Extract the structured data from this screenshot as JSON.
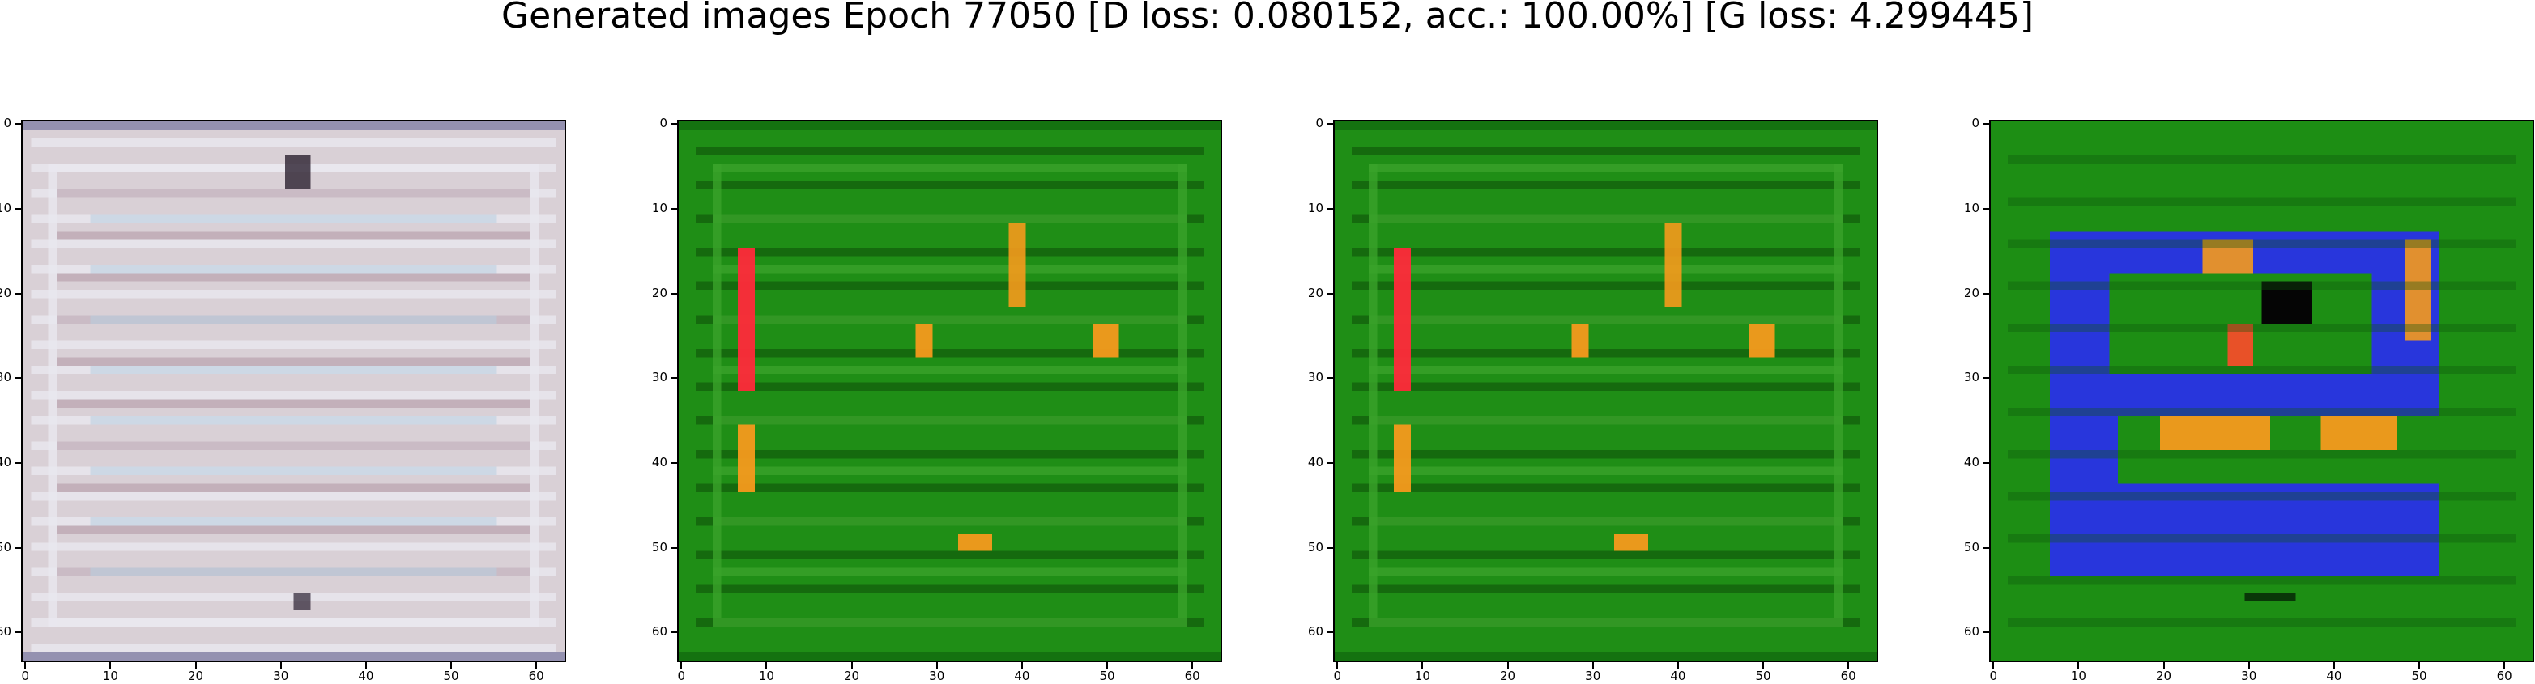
{
  "figure": {
    "title": "Generated images Epoch 77050 [D loss: 0.080152, acc.: 100.00%] [G loss: 4.299445]"
  },
  "panels": [
    {
      "name": "sample-1",
      "palette": "pale",
      "colors": {
        "background": "#d9d0d6",
        "stripe_a": "#e9e7ef",
        "stripe_b": "#a88a98",
        "stripe_c": "#b8cfe0",
        "dark": "#2a2030"
      }
    },
    {
      "name": "sample-2",
      "palette": "green",
      "colors": {
        "background": "#1f8e16",
        "stripe_a": "#3aa32b",
        "stripe_b": "#0c4d0a",
        "accent_a": "#ff2a3a",
        "accent_b": "#f59a1c"
      }
    },
    {
      "name": "sample-3",
      "palette": "green",
      "colors": {
        "background": "#1f8e16",
        "stripe_a": "#3aa32b",
        "stripe_b": "#0c4d0a",
        "accent_a": "#ff2a3a",
        "accent_b": "#f59a1c"
      }
    },
    {
      "name": "sample-4",
      "palette": "green-blue",
      "colors": {
        "background": "#1d8e14",
        "blue": "#2a2cf2",
        "accent_b": "#f59a1c",
        "dark": "#050505"
      }
    }
  ],
  "x_ticks": [
    0,
    10,
    20,
    30,
    40,
    50,
    60
  ],
  "y_ticks": [
    0,
    10,
    20,
    30,
    40,
    50,
    60
  ],
  "x_tick_labels": [
    "0",
    "10",
    "20",
    "30",
    "40",
    "50",
    "60"
  ],
  "y_tick_labels": [
    "0",
    "10",
    "20",
    "30",
    "40",
    "50",
    "60"
  ],
  "image_size": 64
}
